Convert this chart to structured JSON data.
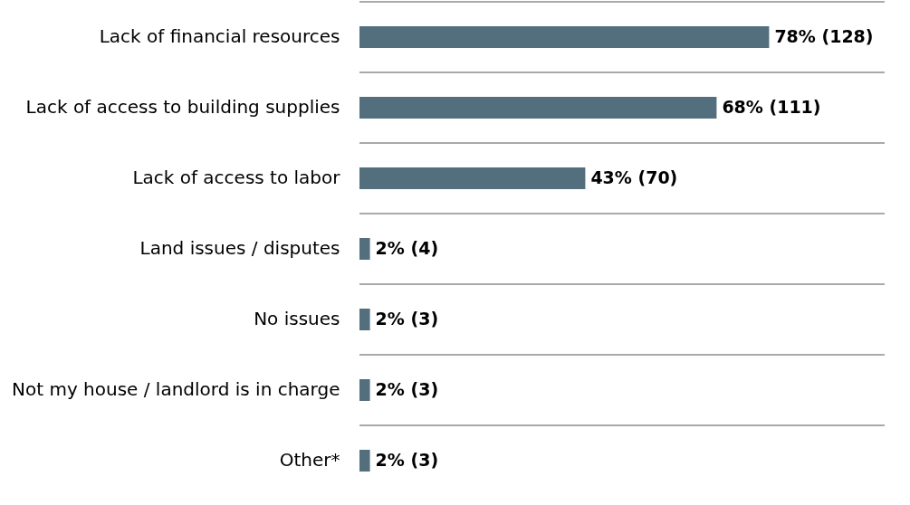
{
  "chart_data": {
    "type": "bar",
    "orientation": "horizontal",
    "categories": [
      "Lack of financial resources",
      "Lack of access to building supplies",
      "Lack of access to labor",
      "Land issues / disputes",
      "No issues",
      "Not my house / landlord is in charge",
      "Other*"
    ],
    "values": [
      78,
      68,
      43,
      2,
      2,
      2,
      2
    ],
    "value_labels": [
      "78% (128)",
      "68% (111)",
      "43% (70)",
      "2% (4)",
      "2% (3)",
      "2% (3)",
      "2% (3)"
    ],
    "color": "#536f7d",
    "xlim": [
      0,
      100
    ],
    "grid": "y"
  }
}
